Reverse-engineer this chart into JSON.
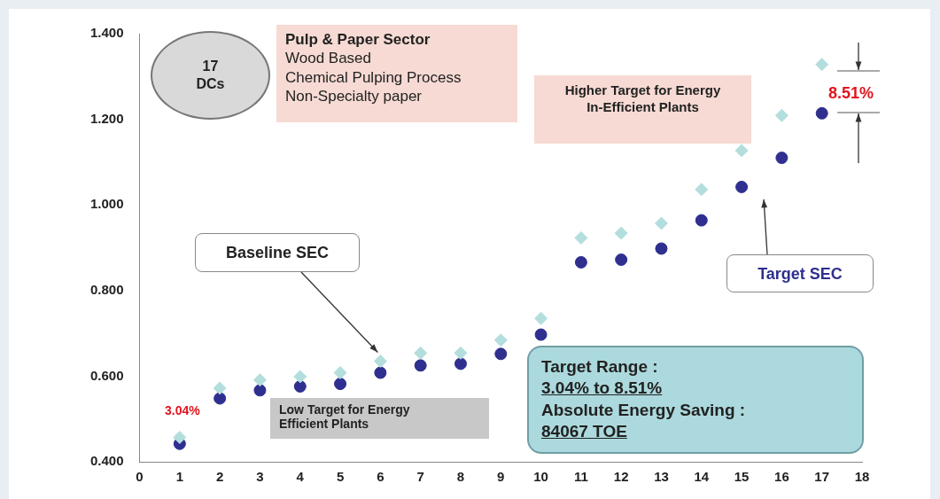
{
  "chart_data": {
    "type": "scatter",
    "x": [
      1,
      2,
      3,
      4,
      5,
      6,
      7,
      8,
      9,
      10,
      11,
      12,
      13,
      14,
      15,
      16,
      17
    ],
    "series": [
      {
        "name": "Baseline SEC",
        "color": "#b4dede",
        "marker": "diamond",
        "values": [
          0.457,
          0.572,
          0.591,
          0.599,
          0.608,
          0.635,
          0.654,
          0.654,
          0.684,
          0.735,
          0.923,
          0.934,
          0.957,
          1.036,
          1.127,
          1.209,
          1.328
        ]
      },
      {
        "name": "Target SEC",
        "color": "#2e2f8f",
        "marker": "circle",
        "values": [
          0.442,
          0.548,
          0.567,
          0.576,
          0.582,
          0.608,
          0.625,
          0.629,
          0.652,
          0.697,
          0.866,
          0.872,
          0.898,
          0.964,
          1.042,
          1.11,
          1.214
        ]
      }
    ],
    "xlim": [
      0,
      18
    ],
    "xticks": [
      0,
      1,
      2,
      3,
      4,
      5,
      6,
      7,
      8,
      9,
      10,
      11,
      12,
      13,
      14,
      15,
      16,
      17,
      18
    ],
    "ylim": [
      0.4,
      1.4
    ],
    "yticks": [
      {
        "value": 0.4,
        "label": "0.400"
      },
      {
        "value": 0.6,
        "label": "0.600"
      },
      {
        "value": 0.8,
        "label": "0.800"
      },
      {
        "value": 1.0,
        "label": "1.000"
      },
      {
        "value": 1.2,
        "label": "1.200"
      },
      {
        "value": 1.4,
        "label": "1.400"
      }
    ],
    "grid": false,
    "legend": false,
    "annotations": [
      "17\nDCs",
      "Pulp & Paper Sector\nWood Based\nChemical Pulping Process\nNon-Specialty paper",
      "Higher Target for Energy\nIn-Efficient Plants",
      "Low Target for Energy\nEfficient Plants",
      "Target Range :\n3.04% to 8.51%\nAbsolute Energy Saving :\n84067 TOE",
      "3.04%",
      "8.51%"
    ]
  }
}
